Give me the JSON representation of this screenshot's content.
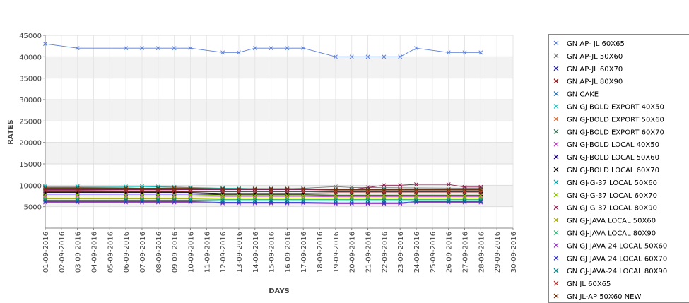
{
  "chart_data": {
    "type": "line",
    "xlabel": "DAYS",
    "ylabel": "RATES",
    "ylim": [
      0,
      45000
    ],
    "yticks": [
      5000,
      10000,
      15000,
      20000,
      25000,
      30000,
      35000,
      40000,
      45000
    ],
    "grid": true,
    "legend_position": "right",
    "categories": [
      "01-09-2016",
      "02-09-2016",
      "03-09-2016",
      "04-09-2016",
      "05-09-2016",
      "06-09-2016",
      "07-09-2016",
      "08-09-2016",
      "09-09-2016",
      "10-09-2016",
      "11-09-2016",
      "12-09-2016",
      "13-09-2016",
      "14-09-2016",
      "15-09-2016",
      "16-09-2016",
      "17-09-2016",
      "18-09-2016",
      "19-09-2016",
      "20-09-2016",
      "21-09-2016",
      "22-09-2016",
      "23-09-2016",
      "24-09-2016",
      "25-09-2016",
      "26-09-2016",
      "27-09-2016",
      "28-09-2016",
      "29-09-2016",
      "30-09-2016"
    ],
    "series": [
      {
        "name": "GN AP- JL 60X65",
        "color": "#5b7fd6",
        "values": [
          43000,
          null,
          42000,
          null,
          null,
          42000,
          42000,
          42000,
          42000,
          42000,
          null,
          41000,
          41000,
          42000,
          42000,
          42000,
          42000,
          null,
          40000,
          40000,
          40000,
          40000,
          40000,
          42000,
          null,
          41000,
          41000,
          41000,
          null,
          null
        ]
      },
      {
        "name": "GN AP-JL 50X60",
        "color": "#7a7a7a",
        "values": [
          9700,
          null,
          9700,
          null,
          null,
          9700,
          9800,
          9700,
          9600,
          9500,
          null,
          9300,
          9200,
          9200,
          9200,
          9200,
          9300,
          null,
          9700,
          9500,
          null,
          null,
          null,
          null,
          null,
          null,
          null,
          9300,
          null,
          null
        ]
      },
      {
        "name": "GN AP-JL 60X70",
        "color": "#1a1a9a",
        "values": [
          9000,
          null,
          9000,
          null,
          null,
          9000,
          9000,
          9000,
          9000,
          9000,
          null,
          9000,
          9000,
          9000,
          9000,
          9000,
          9000,
          null,
          9000,
          9000,
          9000,
          9000,
          9000,
          9000,
          null,
          9000,
          9000,
          9000,
          null,
          null
        ]
      },
      {
        "name": "GN AP-JL 80X90",
        "color": "#8b0000",
        "values": [
          8500,
          null,
          8500,
          null,
          null,
          8500,
          8500,
          8500,
          8500,
          8500,
          null,
          8500,
          8500,
          8500,
          8500,
          8500,
          8500,
          null,
          8500,
          8500,
          8500,
          8500,
          8500,
          8500,
          null,
          8500,
          8500,
          8500,
          null,
          null
        ]
      },
      {
        "name": "GN CAKE",
        "color": "#1f6fb4",
        "values": [
          9500,
          null,
          9500,
          null,
          null,
          9400,
          9300,
          9300,
          9200,
          9200,
          null,
          9100,
          9100,
          9000,
          9000,
          9000,
          9000,
          null,
          9000,
          9000,
          9000,
          9000,
          9000,
          9000,
          null,
          9000,
          9000,
          9000,
          null,
          null
        ]
      },
      {
        "name": "GN GJ-BOLD EXPORT 40X50",
        "color": "#00c8c8",
        "values": [
          9800,
          null,
          9800,
          null,
          null,
          9700,
          9700,
          9600,
          9500,
          9400,
          null,
          9300,
          9300,
          9200,
          9200,
          9200,
          9200,
          null,
          9100,
          9100,
          9100,
          9100,
          9100,
          9100,
          null,
          9100,
          9100,
          9100,
          null,
          null
        ]
      },
      {
        "name": "GN GJ-BOLD EXPORT 50X60",
        "color": "#e06020",
        "values": [
          9200,
          null,
          9200,
          null,
          null,
          9200,
          9200,
          9200,
          9200,
          9200,
          null,
          9000,
          9000,
          9000,
          9000,
          9000,
          9000,
          null,
          8800,
          8800,
          8800,
          8800,
          8800,
          8800,
          null,
          8800,
          8800,
          8800,
          null,
          null
        ]
      },
      {
        "name": "GN GJ-BOLD EXPORT 60X70",
        "color": "#2f6f4f",
        "values": [
          8800,
          null,
          8800,
          null,
          null,
          8700,
          8700,
          8700,
          8700,
          8600,
          null,
          8500,
          8500,
          8500,
          8500,
          8500,
          8500,
          null,
          8400,
          8400,
          8400,
          8400,
          8400,
          8400,
          null,
          8400,
          8400,
          8400,
          null,
          null
        ]
      },
      {
        "name": "GN GJ-BOLD LOCAL 40X50",
        "color": "#c040c0",
        "values": [
          7500,
          null,
          7500,
          null,
          null,
          7500,
          7500,
          7500,
          7500,
          7500,
          null,
          7400,
          7400,
          7400,
          7400,
          7400,
          7400,
          null,
          7300,
          7300,
          7300,
          7300,
          7300,
          7300,
          null,
          7300,
          7300,
          7300,
          null,
          null
        ]
      },
      {
        "name": "GN GJ-BOLD LOCAL 50X60",
        "color": "#200080",
        "values": [
          8000,
          null,
          8000,
          null,
          null,
          8000,
          8000,
          8000,
          8000,
          8000,
          null,
          7800,
          7800,
          7800,
          7800,
          7800,
          7800,
          null,
          7700,
          7700,
          7700,
          7700,
          7700,
          7700,
          null,
          7700,
          7700,
          7700,
          null,
          null
        ]
      },
      {
        "name": "GN GJ-BOLD LOCAL 60X70",
        "color": "#000000",
        "values": [
          8300,
          null,
          8300,
          null,
          null,
          8300,
          8300,
          8300,
          8300,
          8300,
          null,
          8100,
          8100,
          8100,
          8100,
          8100,
          8100,
          null,
          8000,
          8000,
          8000,
          8000,
          8000,
          8000,
          null,
          8000,
          8000,
          8000,
          null,
          null
        ]
      },
      {
        "name": "GN GJ-G-37 LOCAL 50X60",
        "color": "#00a8a8",
        "values": [
          9400,
          null,
          9400,
          null,
          null,
          9300,
          9300,
          9300,
          9300,
          9200,
          null,
          9000,
          9000,
          9000,
          9000,
          9000,
          9000,
          null,
          9100,
          9100,
          9100,
          9100,
          9100,
          9100,
          null,
          9100,
          9100,
          9100,
          null,
          null
        ]
      },
      {
        "name": "GN GJ-G-37 LOCAL 60X70",
        "color": "#8cc800",
        "values": [
          7800,
          null,
          7800,
          null,
          null,
          7800,
          7800,
          7800,
          7800,
          7800,
          null,
          7600,
          7600,
          7600,
          7600,
          7600,
          7600,
          null,
          7600,
          7600,
          7600,
          7600,
          7600,
          7600,
          null,
          7600,
          7600,
          7600,
          null,
          null
        ]
      },
      {
        "name": "GN GJ-G-37 LOCAL 80X90",
        "color": "#8b1a4a",
        "values": [
          9000,
          null,
          9000,
          null,
          null,
          9000,
          9000,
          9000,
          9000,
          9000,
          null,
          9000,
          9000,
          9000,
          9000,
          9000,
          9000,
          null,
          9000,
          9000,
          9500,
          10000,
          10000,
          10200,
          null,
          10200,
          9600,
          9600,
          null,
          null
        ]
      },
      {
        "name": "GN GJ-JAVA LOCAL 50X60",
        "color": "#a0a000",
        "values": [
          7000,
          null,
          7000,
          null,
          null,
          7000,
          7000,
          7000,
          7000,
          7000,
          null,
          7000,
          7000,
          7000,
          7000,
          7000,
          7000,
          null,
          7000,
          7000,
          7000,
          7000,
          7000,
          7000,
          null,
          7000,
          7000,
          7000,
          null,
          null
        ]
      },
      {
        "name": "GN GJ-JAVA LOCAL 80X90",
        "color": "#30b070",
        "values": [
          6800,
          null,
          6800,
          null,
          null,
          6800,
          6800,
          6800,
          6800,
          6800,
          null,
          6700,
          6700,
          6700,
          6700,
          6700,
          6700,
          null,
          6700,
          6700,
          6700,
          6700,
          6700,
          6700,
          null,
          6700,
          6700,
          6700,
          null,
          null
        ]
      },
      {
        "name": "GN GJ-JAVA-24 LOCAL 50X60",
        "color": "#9030c0",
        "values": [
          6000,
          null,
          6000,
          null,
          null,
          6000,
          6000,
          6000,
          6000,
          6000,
          null,
          5800,
          5800,
          5800,
          5800,
          5800,
          5800,
          null,
          5700,
          5700,
          5700,
          5700,
          5700,
          6000,
          null,
          6000,
          6000,
          6000,
          null,
          null
        ]
      },
      {
        "name": "GN GJ-JAVA-24 LOCAL 60X70",
        "color": "#3030d0",
        "values": [
          6200,
          null,
          6200,
          null,
          null,
          6200,
          6200,
          6200,
          6200,
          6200,
          null,
          6000,
          6000,
          6000,
          6000,
          6000,
          6000,
          null,
          5900,
          5900,
          5900,
          5900,
          5900,
          6200,
          null,
          6200,
          6200,
          6200,
          null,
          null
        ]
      },
      {
        "name": "GN GJ-JAVA-24 LOCAL 80X90",
        "color": "#008080",
        "values": [
          6500,
          null,
          6500,
          null,
          null,
          6500,
          6500,
          6500,
          6500,
          6500,
          null,
          6400,
          6400,
          6400,
          6400,
          6400,
          6400,
          null,
          6400,
          6400,
          6400,
          6400,
          6400,
          6400,
          null,
          6400,
          6400,
          6400,
          null,
          null
        ]
      },
      {
        "name": "GN JL 60X65",
        "color": "#b03030",
        "values": [
          8700,
          null,
          8700,
          null,
          null,
          8700,
          8700,
          8700,
          8700,
          8600,
          null,
          8500,
          8500,
          8500,
          8500,
          8500,
          8500,
          null,
          8400,
          8400,
          8400,
          8400,
          8400,
          8400,
          null,
          8400,
          8400,
          8400,
          null,
          null
        ]
      },
      {
        "name": "GN JL-AP 50X60 NEW",
        "color": "#703000",
        "values": [
          9300,
          null,
          9300,
          null,
          null,
          9300,
          9300,
          9300,
          9300,
          9300,
          null,
          9200,
          9200,
          9200,
          9200,
          9200,
          9200,
          null,
          9000,
          9000,
          9000,
          9000,
          9000,
          9000,
          null,
          9000,
          9000,
          9000,
          null,
          null
        ]
      }
    ]
  }
}
